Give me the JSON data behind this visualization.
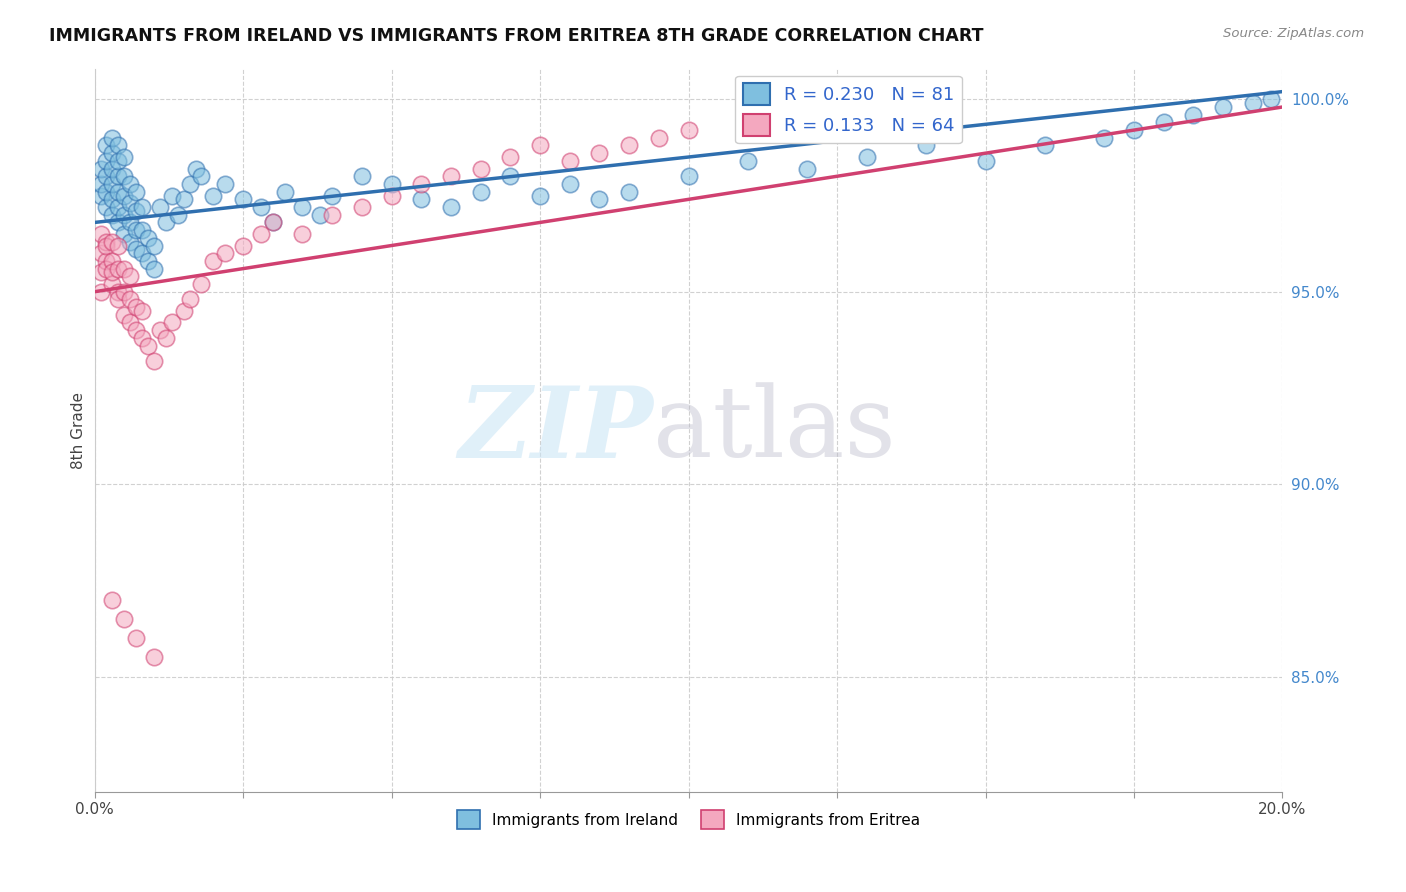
{
  "title": "IMMIGRANTS FROM IRELAND VS IMMIGRANTS FROM ERITREA 8TH GRADE CORRELATION CHART",
  "source": "Source: ZipAtlas.com",
  "ylabel": "8th Grade",
  "r_ireland": 0.23,
  "n_ireland": 81,
  "r_eritrea": 0.133,
  "n_eritrea": 64,
  "color_ireland": "#7fbfdf",
  "color_eritrea": "#f4a8bf",
  "color_ireland_line": "#2f6faf",
  "color_eritrea_line": "#d04070",
  "xlim": [
    0.0,
    0.2
  ],
  "ylim": [
    0.82,
    1.008
  ],
  "yticks": [
    0.85,
    0.9,
    0.95,
    1.0
  ],
  "ytick_labels": [
    "85.0%",
    "90.0%",
    "95.0%",
    "100.0%"
  ],
  "ireland_trend": [
    0.968,
    1.002
  ],
  "eritrea_trend": [
    0.95,
    0.998
  ],
  "ireland_x": [
    0.001,
    0.001,
    0.001,
    0.002,
    0.002,
    0.002,
    0.002,
    0.002,
    0.003,
    0.003,
    0.003,
    0.003,
    0.003,
    0.003,
    0.004,
    0.004,
    0.004,
    0.004,
    0.004,
    0.004,
    0.005,
    0.005,
    0.005,
    0.005,
    0.005,
    0.006,
    0.006,
    0.006,
    0.006,
    0.007,
    0.007,
    0.007,
    0.007,
    0.008,
    0.008,
    0.008,
    0.009,
    0.009,
    0.01,
    0.01,
    0.011,
    0.012,
    0.013,
    0.014,
    0.015,
    0.016,
    0.017,
    0.018,
    0.02,
    0.022,
    0.025,
    0.028,
    0.03,
    0.032,
    0.035,
    0.038,
    0.04,
    0.045,
    0.05,
    0.055,
    0.06,
    0.065,
    0.07,
    0.075,
    0.08,
    0.085,
    0.09,
    0.1,
    0.11,
    0.12,
    0.13,
    0.14,
    0.15,
    0.16,
    0.17,
    0.175,
    0.18,
    0.185,
    0.19,
    0.195,
    0.198
  ],
  "ireland_y": [
    0.975,
    0.978,
    0.982,
    0.972,
    0.976,
    0.98,
    0.984,
    0.988,
    0.97,
    0.974,
    0.978,
    0.982,
    0.986,
    0.99,
    0.968,
    0.972,
    0.976,
    0.98,
    0.984,
    0.988,
    0.965,
    0.97,
    0.975,
    0.98,
    0.985,
    0.963,
    0.968,
    0.973,
    0.978,
    0.961,
    0.966,
    0.971,
    0.976,
    0.96,
    0.966,
    0.972,
    0.958,
    0.964,
    0.956,
    0.962,
    0.972,
    0.968,
    0.975,
    0.97,
    0.974,
    0.978,
    0.982,
    0.98,
    0.975,
    0.978,
    0.974,
    0.972,
    0.968,
    0.976,
    0.972,
    0.97,
    0.975,
    0.98,
    0.978,
    0.974,
    0.972,
    0.976,
    0.98,
    0.975,
    0.978,
    0.974,
    0.976,
    0.98,
    0.984,
    0.982,
    0.985,
    0.988,
    0.984,
    0.988,
    0.99,
    0.992,
    0.994,
    0.996,
    0.998,
    0.999,
    1.0
  ],
  "eritrea_x": [
    0.001,
    0.001,
    0.001,
    0.001,
    0.002,
    0.002,
    0.002,
    0.002,
    0.003,
    0.003,
    0.003,
    0.003,
    0.004,
    0.004,
    0.004,
    0.004,
    0.005,
    0.005,
    0.005,
    0.006,
    0.006,
    0.006,
    0.007,
    0.007,
    0.008,
    0.008,
    0.009,
    0.01,
    0.011,
    0.012,
    0.013,
    0.015,
    0.016,
    0.018,
    0.02,
    0.022,
    0.025,
    0.028,
    0.03,
    0.035,
    0.04,
    0.045,
    0.05,
    0.055,
    0.06,
    0.065,
    0.07,
    0.075,
    0.08,
    0.085,
    0.09,
    0.095,
    0.1,
    0.11,
    0.115,
    0.12,
    0.125,
    0.13,
    0.135,
    0.14,
    0.003,
    0.005,
    0.007,
    0.01
  ],
  "eritrea_y": [
    0.96,
    0.965,
    0.955,
    0.95,
    0.958,
    0.963,
    0.956,
    0.962,
    0.952,
    0.958,
    0.963,
    0.955,
    0.95,
    0.956,
    0.962,
    0.948,
    0.944,
    0.95,
    0.956,
    0.942,
    0.948,
    0.954,
    0.94,
    0.946,
    0.938,
    0.945,
    0.936,
    0.932,
    0.94,
    0.938,
    0.942,
    0.945,
    0.948,
    0.952,
    0.958,
    0.96,
    0.962,
    0.965,
    0.968,
    0.965,
    0.97,
    0.972,
    0.975,
    0.978,
    0.98,
    0.982,
    0.985,
    0.988,
    0.984,
    0.986,
    0.988,
    0.99,
    0.992,
    0.994,
    0.996,
    0.995,
    0.997,
    0.998,
    0.996,
    0.998,
    0.87,
    0.865,
    0.86,
    0.855
  ]
}
